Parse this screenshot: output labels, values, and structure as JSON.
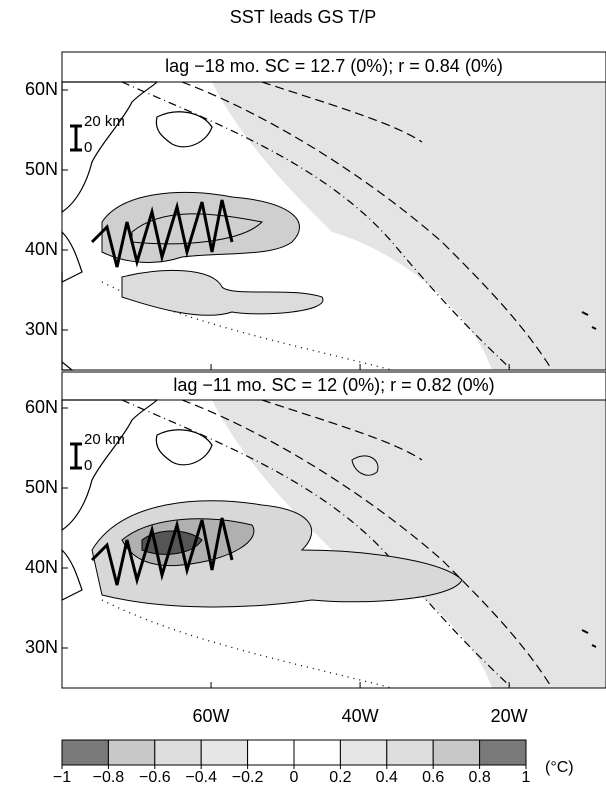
{
  "title": "SST leads GS T/P",
  "panels": [
    {
      "label": "lag −18 mo. SC = 12.7 (0%); r = 0.84 (0%)"
    },
    {
      "label": "lag −11 mo. SC = 12 (0%); r = 0.82 (0%)"
    }
  ],
  "map": {
    "xlim": [
      -80,
      -7
    ],
    "ylim": [
      25,
      61
    ],
    "xticks": [
      {
        "value": -60,
        "label": "60W"
      },
      {
        "value": -40,
        "label": "40W"
      },
      {
        "value": -20,
        "label": "20W"
      }
    ],
    "yticks": [
      {
        "value": 60,
        "label": "60N"
      },
      {
        "value": 50,
        "label": "50N"
      },
      {
        "value": 40,
        "label": "40N"
      },
      {
        "value": 30,
        "label": "30N"
      }
    ]
  },
  "scale_bar": {
    "label": "20 km",
    "zero": "0"
  },
  "colorbar": {
    "ticks": [
      {
        "value": -1,
        "label": "−1"
      },
      {
        "value": -0.8,
        "label": "−0.8"
      },
      {
        "value": -0.6,
        "label": "−0.6"
      },
      {
        "value": -0.4,
        "label": "−0.4"
      },
      {
        "value": -0.2,
        "label": "−0.2"
      },
      0,
      0.2,
      0.4,
      0.6,
      0.8,
      1
    ],
    "colors": [
      "#7a7a7a",
      "#c8c8c8",
      "#dedede",
      "#e6e6e6",
      "#ffffff",
      "#ffffff",
      "#e6e6e6",
      "#dedede",
      "#c8c8c8",
      "#7a7a7a"
    ],
    "unit": "(°C)"
  }
}
